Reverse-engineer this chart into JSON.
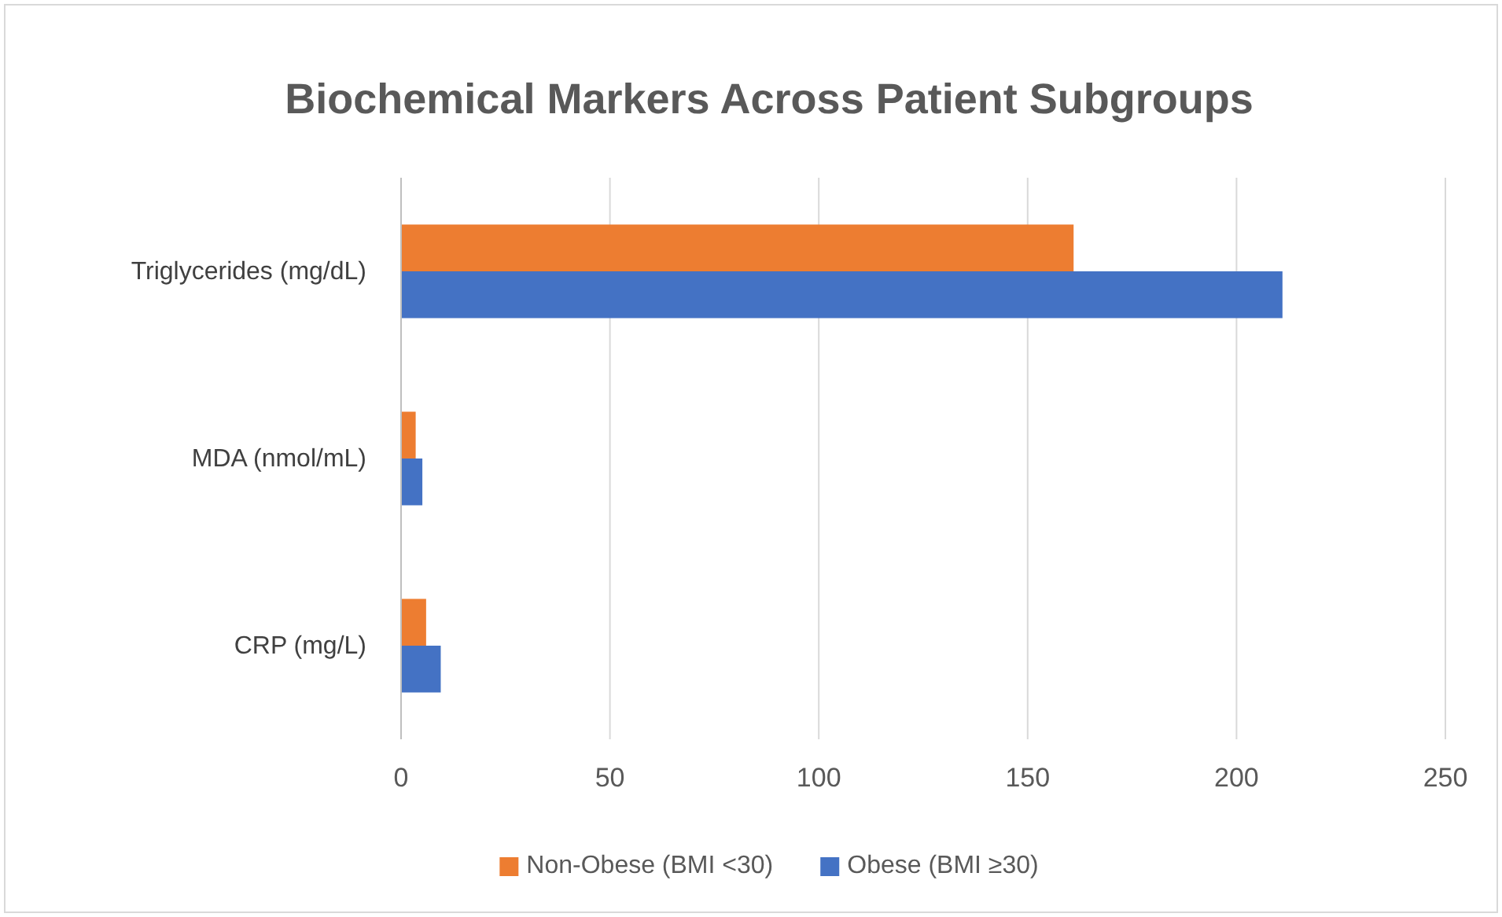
{
  "chart_data": {
    "type": "bar",
    "orientation": "horizontal",
    "title": "Biochemical Markers Across Patient Subgroups",
    "categories": [
      "Triglycerides (mg/dL)",
      "MDA (nmol/mL)",
      "CRP (mg/L)"
    ],
    "series": [
      {
        "name": "Non-Obese (BMI <30)",
        "color": "#ed7d31",
        "values": [
          161,
          3.5,
          6
        ]
      },
      {
        "name": "Obese (BMI ≥30)",
        "color": "#4472c4",
        "values": [
          211,
          5.1,
          9.5
        ]
      }
    ],
    "xlim": [
      0,
      250
    ],
    "xticks": [
      0,
      50,
      100,
      150,
      200,
      250
    ],
    "grid": "x",
    "legend": "bottom"
  }
}
